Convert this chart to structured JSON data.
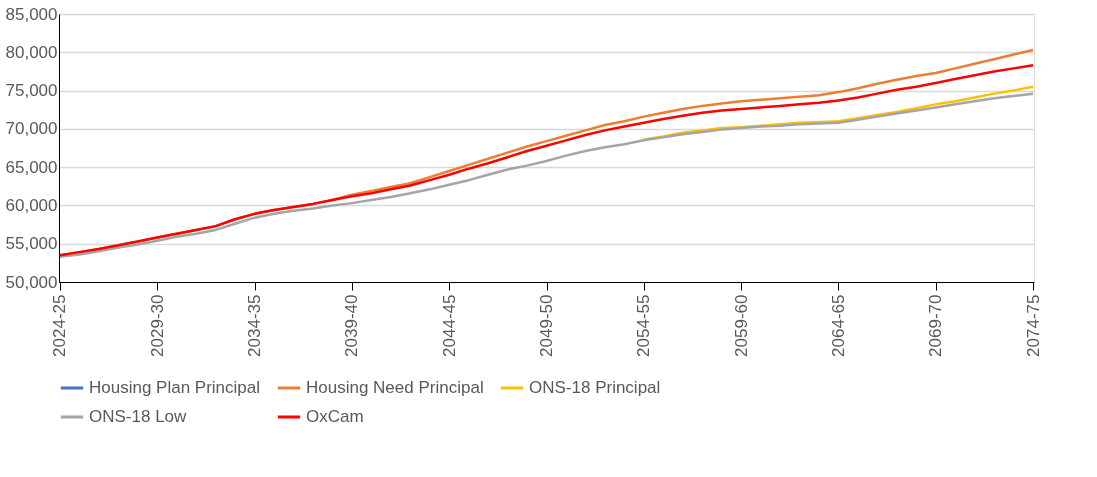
{
  "chart_data": {
    "type": "line",
    "categories": [
      "2024-25",
      null,
      null,
      null,
      null,
      "2029-30",
      null,
      null,
      null,
      null,
      "2034-35",
      null,
      null,
      null,
      null,
      "2039-40",
      null,
      null,
      null,
      null,
      "2044-45",
      null,
      null,
      null,
      null,
      "2049-50",
      null,
      null,
      null,
      null,
      "2054-55",
      null,
      null,
      null,
      null,
      "2059-60",
      null,
      null,
      null,
      null,
      "2064-65",
      null,
      null,
      null,
      null,
      "2069-70",
      null,
      null,
      null,
      null,
      "2074-75"
    ],
    "ylim": [
      50000,
      85000
    ],
    "yticks": [
      {
        "value": 50000,
        "label": "50,000"
      },
      {
        "value": 55000,
        "label": "55,000"
      },
      {
        "value": 60000,
        "label": "60,000"
      },
      {
        "value": 65000,
        "label": "65,000"
      },
      {
        "value": 70000,
        "label": "70,000"
      },
      {
        "value": 75000,
        "label": "75,000"
      },
      {
        "value": 80000,
        "label": "80,000"
      },
      {
        "value": 85000,
        "label": "85,000"
      }
    ],
    "grid": "y",
    "legend": "bottom",
    "line_style": "solid",
    "marker": "none",
    "series": [
      {
        "name": "Housing Plan Principal",
        "color": "#4472c4",
        "values": [
          null,
          null,
          null,
          null,
          null,
          null,
          null,
          null,
          null,
          null,
          null,
          null,
          null,
          null,
          null,
          null,
          null,
          null,
          null,
          null,
          null,
          null,
          null,
          null,
          null,
          null,
          null,
          null,
          null,
          null,
          null,
          null,
          null,
          null,
          null,
          null,
          null,
          null,
          null,
          null,
          null,
          null,
          null,
          null,
          null,
          null,
          null,
          null,
          null,
          null,
          null
        ]
      },
      {
        "name": "Housing Need Principal",
        "color": "#ed7d31",
        "values": [
          53500,
          53900,
          54300,
          54800,
          55300,
          55800,
          56300,
          56800,
          57300,
          58200,
          58900,
          59400,
          59800,
          60200,
          60700,
          61400,
          61900,
          62400,
          62900,
          63700,
          64500,
          65300,
          66100,
          66900,
          67700,
          68400,
          69100,
          69800,
          70500,
          71000,
          71600,
          72100,
          72600,
          73000,
          73300,
          73600,
          73800,
          74000,
          74200,
          74400,
          74800,
          75300,
          75900,
          76400,
          76900,
          77300,
          77900,
          78500,
          79100,
          79700,
          80300
        ]
      },
      {
        "name": "ONS-18 Principal",
        "color": "#ffc000",
        "values": [
          null,
          null,
          null,
          null,
          null,
          null,
          null,
          null,
          null,
          null,
          null,
          null,
          null,
          null,
          null,
          null,
          null,
          null,
          null,
          null,
          null,
          null,
          null,
          null,
          null,
          null,
          null,
          null,
          null,
          null,
          68600,
          69000,
          69500,
          69800,
          70100,
          70200,
          70400,
          70600,
          70800,
          70900,
          71000,
          71400,
          71800,
          72200,
          72700,
          73200,
          73600,
          74100,
          74600,
          75000,
          75500
        ]
      },
      {
        "name": "ONS-18 Low",
        "color": "#a5a5a5",
        "values": [
          53300,
          53600,
          54000,
          54500,
          54900,
          55400,
          55900,
          56300,
          56800,
          57600,
          58400,
          58900,
          59300,
          59600,
          60000,
          60300,
          60700,
          61100,
          61600,
          62100,
          62700,
          63300,
          64000,
          64700,
          65200,
          65800,
          66500,
          67100,
          67600,
          68000,
          68500,
          68900,
          69300,
          69600,
          69900,
          70100,
          70300,
          70400,
          70600,
          70700,
          70800,
          71200,
          71600,
          72000,
          72400,
          72800,
          73200,
          73600,
          74000,
          74300,
          74600
        ]
      },
      {
        "name": "OxCam",
        "color": "#ff0000",
        "values": [
          53500,
          53900,
          54300,
          54800,
          55300,
          55800,
          56300,
          56800,
          57300,
          58200,
          58900,
          59400,
          59800,
          60200,
          60700,
          61200,
          61600,
          62100,
          62600,
          63300,
          64000,
          64800,
          65500,
          66300,
          67100,
          67800,
          68500,
          69200,
          69800,
          70300,
          70800,
          71300,
          71700,
          72100,
          72400,
          72600,
          72800,
          73000,
          73200,
          73400,
          73700,
          74100,
          74600,
          75100,
          75500,
          76000,
          76500,
          77000,
          77500,
          77900,
          78300
        ]
      }
    ]
  }
}
